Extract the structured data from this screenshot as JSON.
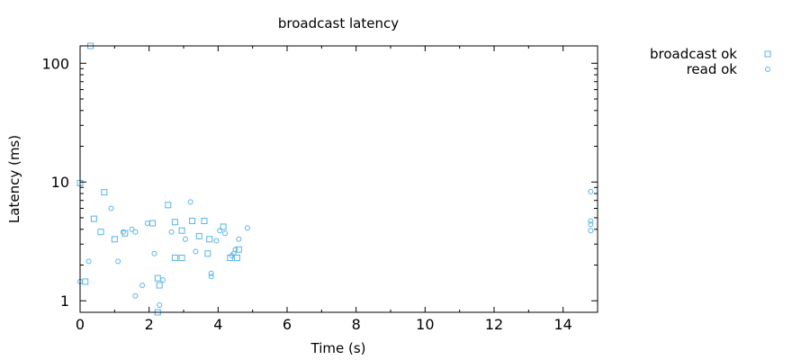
{
  "chart_data": {
    "type": "scatter",
    "title": "broadcast latency",
    "xlabel": "Time (s)",
    "ylabel": "Latency (ms)",
    "xlim": [
      0,
      15
    ],
    "ylim": [
      0.8,
      140
    ],
    "yscale": "log",
    "x_ticks": [
      0,
      2,
      4,
      6,
      8,
      10,
      12,
      14
    ],
    "x_tick_labels": [
      "0",
      "2",
      "4",
      "6",
      "8",
      "10",
      "12",
      "14"
    ],
    "y_ticks": [
      1,
      10,
      100
    ],
    "y_tick_labels": [
      "1",
      "10",
      "100"
    ],
    "grid": false,
    "legend_position": "outside top-right",
    "series": [
      {
        "name": "broadcast ok",
        "marker": "square",
        "color": "#56b4e9",
        "points": [
          [
            0.3,
            140
          ],
          [
            0.0,
            9.8
          ],
          [
            0.7,
            8.2
          ],
          [
            0.4,
            4.9
          ],
          [
            0.6,
            3.8
          ],
          [
            1.0,
            3.3
          ],
          [
            1.3,
            3.7
          ],
          [
            2.1,
            4.5
          ],
          [
            2.55,
            6.4
          ],
          [
            2.75,
            4.6
          ],
          [
            2.95,
            3.9
          ],
          [
            3.25,
            4.7
          ],
          [
            3.6,
            4.7
          ],
          [
            3.45,
            3.5
          ],
          [
            3.75,
            3.3
          ],
          [
            3.7,
            2.5
          ],
          [
            4.15,
            4.2
          ],
          [
            4.6,
            2.7
          ],
          [
            4.35,
            2.3
          ],
          [
            4.55,
            2.3
          ],
          [
            2.75,
            2.3
          ],
          [
            2.95,
            2.3
          ],
          [
            2.25,
            1.55
          ],
          [
            2.3,
            1.35
          ],
          [
            2.25,
            0.8
          ],
          [
            0.15,
            1.45
          ]
        ]
      },
      {
        "name": "read ok",
        "marker": "circle",
        "color": "#56b4e9",
        "points": [
          [
            0.0,
            1.45
          ],
          [
            0.25,
            2.15
          ],
          [
            0.9,
            6.0
          ],
          [
            1.1,
            2.15
          ],
          [
            1.25,
            3.8
          ],
          [
            1.5,
            4.0
          ],
          [
            1.6,
            3.8
          ],
          [
            1.6,
            1.1
          ],
          [
            1.8,
            1.35
          ],
          [
            1.95,
            4.5
          ],
          [
            2.15,
            2.5
          ],
          [
            2.3,
            0.92
          ],
          [
            2.4,
            1.5
          ],
          [
            2.65,
            3.8
          ],
          [
            3.05,
            3.3
          ],
          [
            3.2,
            6.8
          ],
          [
            3.35,
            2.6
          ],
          [
            3.8,
            1.7
          ],
          [
            3.8,
            1.6
          ],
          [
            3.95,
            3.2
          ],
          [
            4.05,
            3.9
          ],
          [
            4.2,
            3.7
          ],
          [
            4.4,
            2.4
          ],
          [
            4.45,
            2.5
          ],
          [
            4.5,
            2.7
          ],
          [
            4.6,
            3.3
          ],
          [
            4.85,
            4.1
          ],
          [
            14.8,
            8.3
          ],
          [
            14.8,
            4.7
          ],
          [
            14.8,
            4.4
          ],
          [
            14.8,
            3.9
          ]
        ]
      }
    ]
  }
}
